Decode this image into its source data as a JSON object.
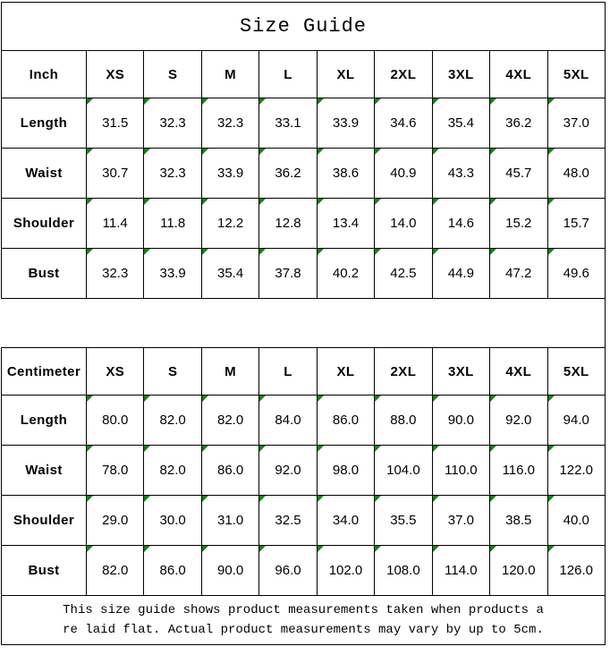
{
  "title": "Size Guide",
  "sizes": [
    "XS",
    "S",
    "M",
    "L",
    "XL",
    "2XL",
    "3XL",
    "4XL",
    "5XL"
  ],
  "tables": [
    {
      "id": "inch",
      "unit_label": "Inch",
      "rows": [
        {
          "label": "Length",
          "values": [
            "31.5",
            "32.3",
            "32.3",
            "33.1",
            "33.9",
            "34.6",
            "35.4",
            "36.2",
            "37.0"
          ]
        },
        {
          "label": "Waist",
          "values": [
            "30.7",
            "32.3",
            "33.9",
            "36.2",
            "38.6",
            "40.9",
            "43.3",
            "45.7",
            "48.0"
          ]
        },
        {
          "label": "Shoulder",
          "values": [
            "11.4",
            "11.8",
            "12.2",
            "12.8",
            "13.4",
            "14.0",
            "14.6",
            "15.2",
            "15.7"
          ]
        },
        {
          "label": "Bust",
          "values": [
            "32.3",
            "33.9",
            "35.4",
            "37.8",
            "40.2",
            "42.5",
            "44.9",
            "47.2",
            "49.6"
          ]
        }
      ]
    },
    {
      "id": "cm",
      "unit_label": "Centimeter",
      "rows": [
        {
          "label": "Length",
          "values": [
            "80.0",
            "82.0",
            "82.0",
            "84.0",
            "86.0",
            "88.0",
            "90.0",
            "92.0",
            "94.0"
          ]
        },
        {
          "label": "Waist",
          "values": [
            "78.0",
            "82.0",
            "86.0",
            "92.0",
            "98.0",
            "104.0",
            "110.0",
            "116.0",
            "122.0"
          ]
        },
        {
          "label": "Shoulder",
          "values": [
            "29.0",
            "30.0",
            "31.0",
            "32.5",
            "34.0",
            "35.5",
            "37.0",
            "38.5",
            "40.0"
          ]
        },
        {
          "label": "Bust",
          "values": [
            "82.0",
            "86.0",
            "90.0",
            "96.0",
            "102.0",
            "108.0",
            "114.0",
            "120.0",
            "126.0"
          ]
        }
      ]
    }
  ],
  "footer": {
    "line1": "This size guide shows product measurements taken when products a",
    "line2": "re laid flat. Actual product measurements may vary by up to 5cm."
  },
  "colors": {
    "border": "#000000",
    "flag_green": "#118511",
    "text": "#000000",
    "background": "#ffffff"
  },
  "icons": {
    "value_flag": "cell-corner-flag-triangle"
  }
}
